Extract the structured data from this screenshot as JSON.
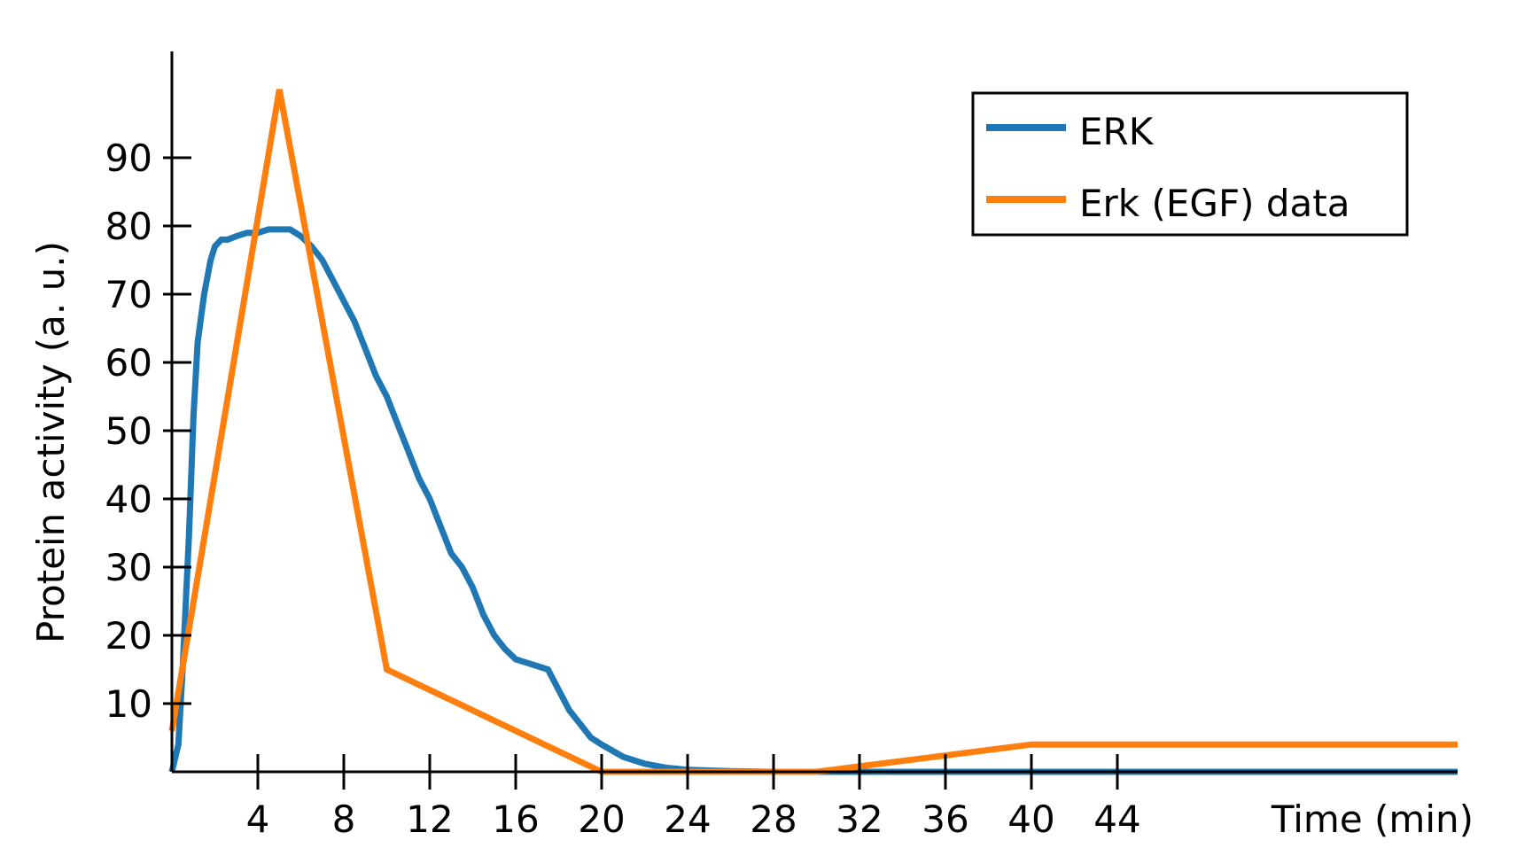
{
  "chart_data": {
    "type": "line",
    "title": "",
    "xlabel": "Time (min)",
    "ylabel": "Protein activity (a. u.)",
    "xlim": [
      0,
      60
    ],
    "ylim": [
      0,
      105
    ],
    "x_ticks": [
      4,
      8,
      12,
      16,
      20,
      24,
      28,
      32,
      36,
      40,
      44
    ],
    "x_tick_labels": [
      "4",
      "8",
      "12",
      "16",
      "20",
      "24",
      "28",
      "32",
      "36",
      "40",
      "44"
    ],
    "y_ticks": [
      10,
      20,
      30,
      40,
      50,
      60,
      70,
      80,
      90
    ],
    "y_tick_labels": [
      "10",
      "20",
      "30",
      "40",
      "50",
      "60",
      "70",
      "80",
      "90"
    ],
    "grid": false,
    "legend_position": "top-right",
    "series": [
      {
        "name": "ERK",
        "color": "#1f77b4",
        "x": [
          0,
          0.3,
          0.5,
          0.8,
          1.0,
          1.2,
          1.5,
          1.8,
          2.0,
          2.3,
          2.6,
          3.0,
          3.5,
          4.0,
          4.5,
          5.0,
          5.5,
          6.0,
          6.5,
          7.0,
          7.5,
          8.0,
          8.5,
          9.0,
          9.5,
          10.0,
          10.5,
          11.0,
          11.5,
          12.0,
          12.5,
          13.0,
          13.5,
          14.0,
          14.5,
          15.0,
          15.5,
          16.0,
          16.5,
          17.0,
          17.5,
          18.0,
          18.5,
          19.0,
          19.5,
          20.0,
          21.0,
          22.0,
          23.0,
          24.0,
          26.0,
          28.0,
          30.0,
          35.0,
          40.0,
          45.0,
          50.0,
          55.0,
          60.0
        ],
        "y": [
          0,
          4,
          15,
          35,
          52,
          63,
          70,
          75,
          77,
          78,
          78,
          78.5,
          79,
          79,
          79.5,
          79.5,
          79.5,
          78.5,
          77,
          75,
          72,
          69,
          66,
          62,
          58,
          55,
          51,
          47,
          43,
          40,
          36,
          32,
          30,
          27,
          23,
          20,
          18,
          16.5,
          16,
          15.5,
          15,
          12,
          9,
          7,
          5,
          4,
          2.2,
          1.2,
          0.6,
          0.3,
          0.1,
          0,
          0,
          0,
          0,
          0,
          0,
          0,
          0
        ]
      },
      {
        "name": "Erk (EGF) data",
        "color": "#ff7f0e",
        "x": [
          0,
          5,
          10,
          20,
          30,
          40,
          60
        ],
        "y": [
          6,
          100,
          15,
          0,
          0,
          4,
          4
        ]
      }
    ]
  }
}
